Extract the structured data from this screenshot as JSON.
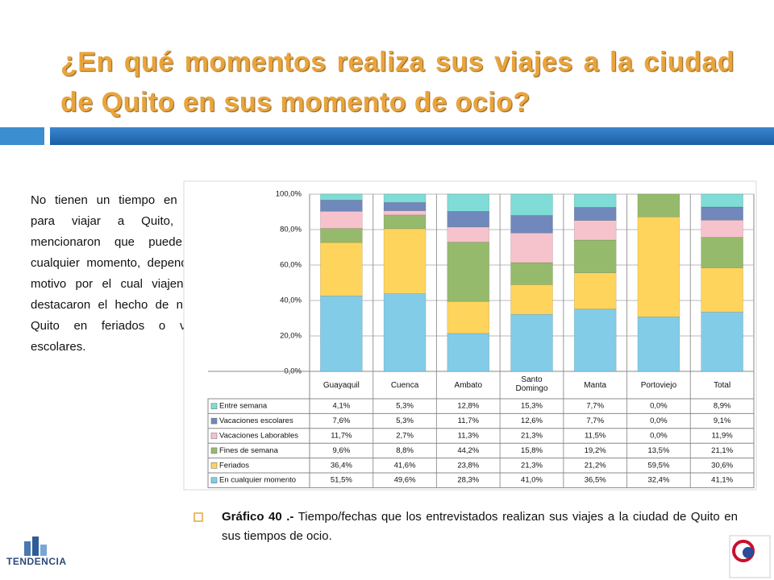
{
  "title": "¿En qué momentos realiza sus viajes a la ciudad de Quito en sus momento de ocio?",
  "paragraph": "No tienen un tiempo en específico para viajar a Quito, ya que mencionaron que puede ser en cualquier momento, dependiendo del motivo por el cual viajen. Aunque, destacaron el hecho de no viajar a Quito en feriados o vacaciones escolares.",
  "caption": {
    "label": "Gráfico 40 .-",
    "text": "Tiempo/fechas que los entrevistados realizan sus viajes a la ciudad de Quito en sus tiempos de ocio."
  },
  "logo": "TENDENCIA",
  "chart_data": {
    "type": "bar",
    "stack": "percent",
    "grid": true,
    "categories": [
      "Guayaquil",
      "Cuenca",
      "Ambato",
      "Santo Domingo",
      "Manta",
      "Portoviejo",
      "Total"
    ],
    "ylim": [
      0,
      100
    ],
    "yticks": [
      {
        "value": 0,
        "label": "0,0%"
      },
      {
        "value": 20,
        "label": "20,0%"
      },
      {
        "value": 40,
        "label": "40,0%"
      },
      {
        "value": 60,
        "label": "60,0%"
      },
      {
        "value": 80,
        "label": "80,0%"
      },
      {
        "value": 100,
        "label": "100,0%"
      }
    ],
    "series": [
      {
        "name": "Entre semana",
        "color": "#7fdcd6",
        "values": [
          4.1,
          5.3,
          12.8,
          15.3,
          7.7,
          0,
          8.9
        ],
        "value_labels": [
          "4,1%",
          "5,3%",
          "12,8%",
          "15,3%",
          "7,7%",
          "0,0%",
          "8,9%"
        ]
      },
      {
        "name": "Vacaciones escolares",
        "color": "#7088bb",
        "values": [
          7.6,
          5.3,
          11.7,
          12.6,
          7.7,
          0,
          9.1
        ],
        "value_labels": [
          "7,6%",
          "5,3%",
          "11,7%",
          "12,6%",
          "7,7%",
          "0,0%",
          "9,1%"
        ]
      },
      {
        "name": "Vacaciones Laborables",
        "color": "#f6c3cd",
        "values": [
          11.7,
          2.7,
          11.3,
          21.3,
          11.5,
          0,
          11.9
        ],
        "value_labels": [
          "11,7%",
          "2,7%",
          "11,3%",
          "21,3%",
          "11,5%",
          "0,0%",
          "11,9%"
        ]
      },
      {
        "name": "Fines de semana",
        "color": "#95ba6c",
        "values": [
          9.6,
          8.8,
          44.2,
          15.8,
          19.2,
          13.5,
          21.1
        ],
        "value_labels": [
          "9,6%",
          "8,8%",
          "44,2%",
          "15,8%",
          "19,2%",
          "13,5%",
          "21,1%"
        ]
      },
      {
        "name": "Feriados",
        "color": "#ffd45c",
        "values": [
          36.4,
          41.6,
          23.8,
          21.3,
          21.2,
          59.5,
          30.6
        ],
        "value_labels": [
          "36,4%",
          "41,6%",
          "23,8%",
          "21,3%",
          "21,2%",
          "59,5%",
          "30,6%"
        ]
      },
      {
        "name": "En cualquier momento",
        "color": "#82cce8",
        "values": [
          51.5,
          49.6,
          28.3,
          41.0,
          36.5,
          32.4,
          41.1
        ],
        "value_labels": [
          "51,5%",
          "49,6%",
          "28,3%",
          "41,0%",
          "36,5%",
          "32,4%",
          "41,1%"
        ]
      }
    ]
  }
}
